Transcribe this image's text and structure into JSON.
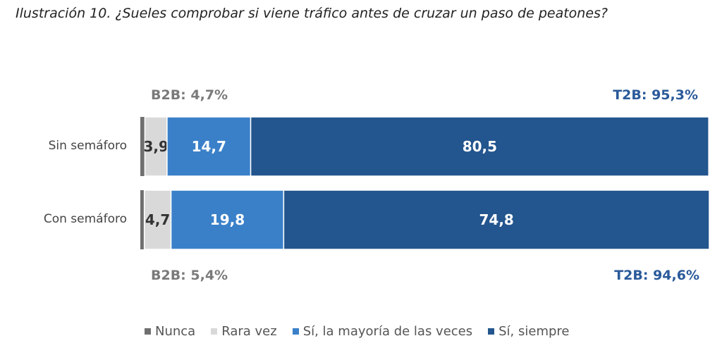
{
  "chart_data": {
    "type": "bar",
    "orientation": "horizontal",
    "stacked": true,
    "title": "Ilustración 10. ¿Sueles comprobar si viene tráfico antes de cruzar un paso de peatones?",
    "categories": [
      "Sin semáforo",
      "Con semáforo"
    ],
    "series": [
      {
        "name": "Nunca",
        "color": "#6f6f6f",
        "values": [
          0.8,
          0.7
        ],
        "labels": [
          "",
          ""
        ]
      },
      {
        "name": "Rara vez",
        "color": "#d9d9d9",
        "values": [
          3.9,
          4.7
        ],
        "labels": [
          "3,9",
          "4,7"
        ]
      },
      {
        "name": "Sí, la mayoría de las veces",
        "color": "#3a80c9",
        "values": [
          14.7,
          19.8
        ],
        "labels": [
          "14,7",
          "19,8"
        ]
      },
      {
        "name": "Sí, siempre",
        "color": "#23558e",
        "values": [
          80.5,
          74.8
        ],
        "labels": [
          "80,5",
          "74,8"
        ]
      }
    ],
    "xlim": [
      0,
      100
    ],
    "legend_position": "bottom",
    "annotations": {
      "sin_b2b": "B2B: 4,7%",
      "sin_t2b": "T2B: 95,3%",
      "con_b2b": "B2B: 5,4%",
      "con_t2b": "T2B: 94,6%"
    }
  }
}
